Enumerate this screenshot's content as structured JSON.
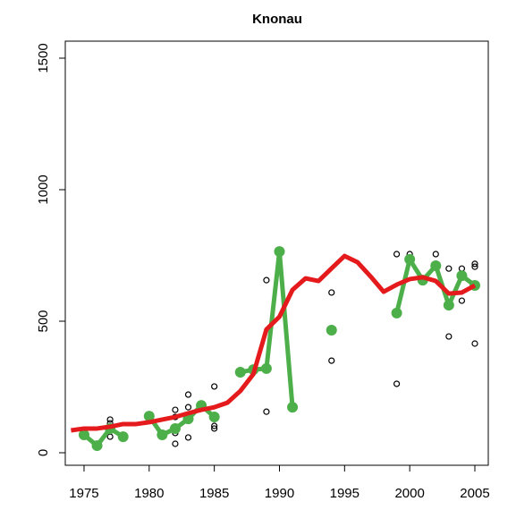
{
  "chart_data": {
    "type": "line",
    "title": "Knonau",
    "xlim": [
      1973.56,
      2006.03
    ],
    "xticks": [
      1975,
      1980,
      1985,
      1990,
      1995,
      2000,
      2005
    ],
    "ylim": [
      -47.6,
      1564.6
    ],
    "yticks": [
      0,
      500,
      1000,
      1500
    ],
    "series": [
      {
        "kind": "scatter",
        "color": "#000000",
        "x": [
          1977,
          1977,
          1977,
          1982,
          1982,
          1982,
          1982,
          1983,
          1983,
          1983,
          1985,
          1985,
          1985,
          1989,
          1989,
          1994,
          1994,
          1999,
          1999,
          2000,
          2002,
          2003,
          2003,
          2004,
          2004,
          2005,
          2005,
          2005
        ],
        "values": [
          126,
          112,
          61,
          163,
          136,
          75,
          34,
          221,
          173,
          58,
          252,
          102,
          92,
          656,
          156,
          609,
          350,
          755,
          262,
          755,
          755,
          700,
          442,
          700,
          578,
          718,
          707,
          415
        ]
      },
      {
        "kind": "line-points",
        "color": "#4daf4a",
        "x": [
          1975,
          1976,
          1977,
          1978,
          1979,
          1980,
          1981,
          1982,
          1983,
          1984,
          1985,
          1986,
          1987,
          1988,
          1989,
          1990,
          1991,
          1992,
          1993,
          1994,
          1995,
          1996,
          1997,
          1998,
          1999,
          2000,
          2001,
          2002,
          2003,
          2004,
          2005
        ],
        "values": [
          68,
          27,
          92,
          61,
          null,
          139,
          68,
          92,
          129,
          180,
          136,
          null,
          306,
          316,
          320,
          765,
          173,
          null,
          null,
          466,
          null,
          null,
          null,
          null,
          531,
          735,
          656,
          711,
          561,
          673,
          636
        ]
      },
      {
        "kind": "line",
        "color": "#e41a1c",
        "x": [
          1974,
          1975,
          1976,
          1977,
          1978,
          1979,
          1980,
          1981,
          1982,
          1983,
          1984,
          1985,
          1986,
          1987,
          1988,
          1989,
          1990,
          1991,
          1992,
          1993,
          1994,
          1995,
          1996,
          1997,
          1998,
          1999,
          2000,
          2001,
          2002,
          2003,
          2004,
          2005
        ],
        "values": [
          85,
          92,
          92,
          99,
          109,
          109,
          116,
          126,
          136,
          150,
          163,
          173,
          190,
          235,
          299,
          469,
          517,
          619,
          663,
          653,
          701,
          748,
          724,
          670,
          612,
          639,
          660,
          667,
          653,
          605,
          609,
          636
        ]
      }
    ]
  }
}
